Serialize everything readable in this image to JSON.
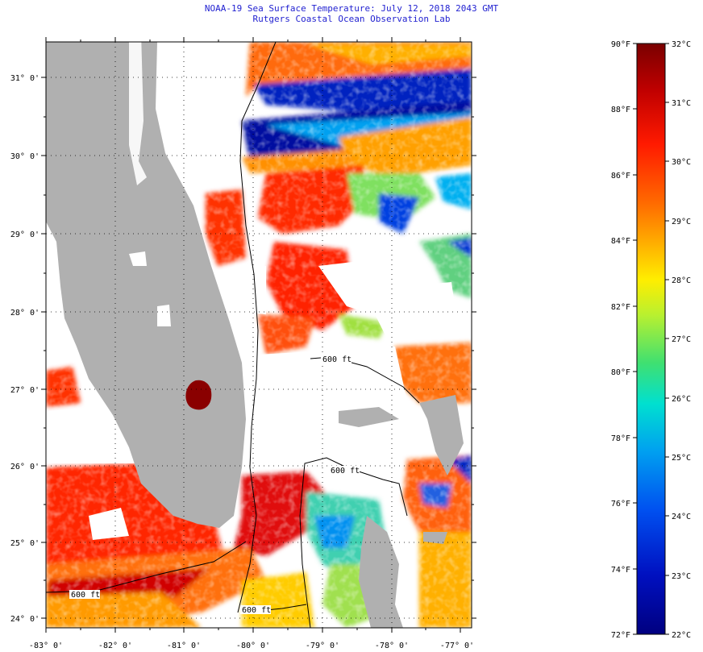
{
  "title": {
    "line1": "NOAA-19 Sea Surface Temperature:  July 12, 2018 2043 GMT",
    "line2": "Rutgers Coastal Ocean Observation Lab"
  },
  "axes": {
    "lon_labels": [
      "-83° 0'",
      "-82° 0'",
      "-81° 0'",
      "-80° 0'",
      "-79° 0'",
      "-78° 0'",
      "-77° 0'"
    ],
    "lat_labels": [
      "31° 0'",
      "30° 0'",
      "29° 0'",
      "28° 0'",
      "27° 0'",
      "26° 0'",
      "25° 0'",
      "24° 0'"
    ]
  },
  "contour_labels": [
    "600 ft",
    "600 ft",
    "600 ft",
    "600 ft"
  ],
  "colorbar": {
    "fahrenheit_labels": [
      "90°F",
      "88°F",
      "86°F",
      "84°F",
      "82°F",
      "80°F",
      "78°F",
      "76°F",
      "74°F",
      "72°F"
    ],
    "celsius_labels": [
      "32°C",
      "31°C",
      "30°C",
      "29°C",
      "28°C",
      "27°C",
      "26°C",
      "25°C",
      "24°C",
      "23°C",
      "22°C"
    ],
    "colors": [
      "#7a0000",
      "#c00000",
      "#ff1a00",
      "#ff6a00",
      "#ffb000",
      "#ffee00",
      "#b8f030",
      "#40e070",
      "#00e0d0",
      "#00a0f0",
      "#0050f0",
      "#0010c0",
      "#000080"
    ]
  },
  "colors": {
    "land": "#b0b0b0",
    "cloud": "#ffffff",
    "title_text": "#1f1fd0"
  }
}
